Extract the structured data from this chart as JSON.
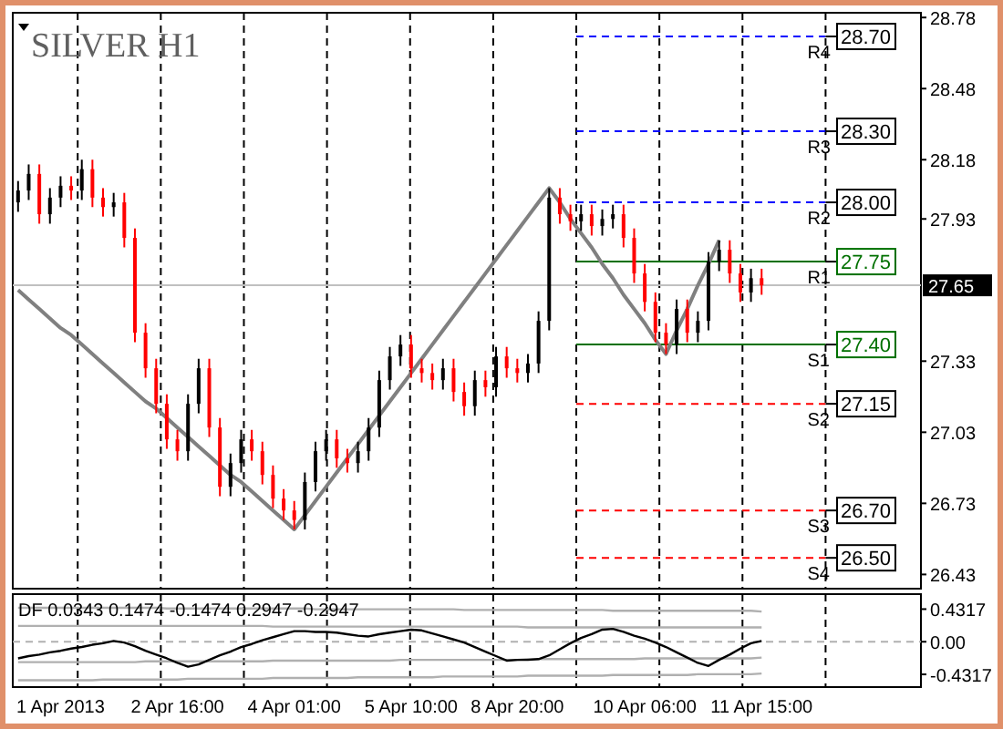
{
  "chart_data": [
    {
      "type": "candlestick",
      "title": "SILVER H1",
      "tick_labels": "y",
      "grid": "x",
      "ylim": [
        26.37,
        28.8
      ],
      "yticks": [
        28.78,
        28.48,
        28.18,
        27.93,
        27.33,
        27.03,
        26.73,
        26.43
      ],
      "categories": [
        null,
        null,
        null,
        null,
        null,
        null,
        null,
        null,
        null,
        null,
        null,
        null,
        null,
        null,
        null,
        null,
        null,
        null,
        null,
        null,
        null,
        null,
        null,
        null,
        null,
        null,
        null,
        null,
        null,
        null,
        null,
        null,
        null,
        null,
        null,
        null,
        null,
        null,
        null,
        null,
        null,
        null,
        null,
        null,
        null,
        null,
        null,
        null,
        null,
        null,
        null,
        null,
        null,
        null,
        null,
        null,
        null,
        null,
        null,
        null,
        null,
        null,
        null,
        null,
        null,
        null,
        null,
        null,
        null,
        null,
        null
      ],
      "ohlc": [
        [
          28.0,
          28.09,
          27.96,
          28.05
        ],
        [
          28.05,
          28.16,
          28.01,
          28.12
        ],
        [
          28.12,
          28.16,
          27.91,
          27.95
        ],
        [
          27.95,
          28.06,
          27.91,
          28.02
        ],
        [
          28.02,
          28.11,
          27.98,
          28.07
        ],
        [
          28.07,
          28.11,
          28.01,
          28.05
        ],
        [
          28.05,
          28.18,
          28.01,
          28.14
        ],
        [
          28.14,
          28.18,
          27.98,
          28.02
        ],
        [
          28.02,
          28.06,
          27.94,
          27.98
        ],
        [
          27.98,
          28.04,
          27.94,
          28.0
        ],
        [
          28.0,
          28.04,
          27.81,
          27.85
        ],
        [
          27.85,
          27.89,
          27.41,
          27.45
        ],
        [
          27.45,
          27.49,
          27.26,
          27.3
        ],
        [
          27.3,
          27.34,
          27.11,
          27.15
        ],
        [
          27.15,
          27.19,
          26.96,
          27.0
        ],
        [
          27.0,
          27.04,
          26.91,
          26.95
        ],
        [
          26.95,
          27.19,
          26.91,
          27.15
        ],
        [
          27.15,
          27.34,
          27.11,
          27.3
        ],
        [
          27.3,
          27.34,
          27.01,
          27.05
        ],
        [
          27.05,
          27.09,
          26.76,
          26.8
        ],
        [
          26.8,
          26.94,
          26.76,
          26.9
        ],
        [
          26.9,
          27.04,
          26.86,
          27.0
        ],
        [
          27.0,
          27.04,
          26.91,
          26.95
        ],
        [
          26.95,
          26.99,
          26.81,
          26.85
        ],
        [
          26.85,
          26.89,
          26.71,
          26.75
        ],
        [
          26.75,
          26.79,
          26.66,
          26.7
        ],
        [
          26.7,
          26.74,
          26.62,
          26.66
        ],
        [
          26.66,
          26.86,
          26.62,
          26.82
        ],
        [
          26.82,
          26.99,
          26.78,
          26.95
        ],
        [
          26.95,
          27.04,
          26.91,
          27.0
        ],
        [
          27.0,
          27.04,
          26.88,
          26.92
        ],
        [
          26.92,
          26.96,
          26.86,
          26.9
        ],
        [
          26.9,
          26.99,
          26.86,
          26.95
        ],
        [
          26.95,
          27.09,
          26.91,
          27.05
        ],
        [
          27.05,
          27.29,
          27.01,
          27.25
        ],
        [
          27.25,
          27.39,
          27.21,
          27.35
        ],
        [
          27.35,
          27.44,
          27.31,
          27.4
        ],
        [
          27.4,
          27.44,
          27.26,
          27.3
        ],
        [
          27.3,
          27.34,
          27.24,
          27.28
        ],
        [
          27.28,
          27.32,
          27.21,
          27.25
        ],
        [
          27.25,
          27.34,
          27.21,
          27.3
        ],
        [
          27.3,
          27.34,
          27.16,
          27.2
        ],
        [
          27.2,
          27.24,
          27.1,
          27.14
        ],
        [
          27.14,
          27.29,
          27.1,
          27.25
        ],
        [
          27.25,
          27.29,
          27.18,
          27.22
        ],
        [
          27.22,
          27.39,
          27.18,
          27.35
        ],
        [
          27.35,
          27.39,
          27.26,
          27.3
        ],
        [
          27.3,
          27.34,
          27.24,
          27.28
        ],
        [
          27.28,
          27.36,
          27.24,
          27.32
        ],
        [
          27.32,
          27.54,
          27.28,
          27.5
        ],
        [
          27.5,
          28.06,
          27.46,
          28.02
        ],
        [
          28.02,
          28.06,
          27.91,
          27.95
        ],
        [
          27.95,
          27.99,
          27.88,
          27.92
        ],
        [
          27.92,
          27.99,
          27.88,
          27.95
        ],
        [
          27.95,
          27.99,
          27.86,
          27.9
        ],
        [
          27.9,
          27.97,
          27.86,
          27.93
        ],
        [
          27.93,
          27.99,
          27.89,
          27.95
        ],
        [
          27.95,
          27.99,
          27.81,
          27.85
        ],
        [
          27.85,
          27.89,
          27.66,
          27.7
        ],
        [
          27.7,
          27.74,
          27.54,
          27.58
        ],
        [
          27.58,
          27.62,
          27.41,
          27.45
        ],
        [
          27.45,
          27.49,
          27.36,
          27.4
        ],
        [
          27.4,
          27.59,
          27.36,
          27.55
        ],
        [
          27.55,
          27.59,
          27.41,
          27.45
        ],
        [
          27.45,
          27.54,
          27.41,
          27.5
        ],
        [
          27.5,
          27.79,
          27.46,
          27.75
        ],
        [
          27.75,
          27.84,
          27.71,
          27.8
        ],
        [
          27.8,
          27.84,
          27.66,
          27.7
        ],
        [
          27.7,
          27.74,
          27.58,
          27.62
        ],
        [
          27.62,
          27.72,
          27.58,
          27.68
        ],
        [
          27.68,
          27.72,
          27.61,
          27.65
        ]
      ],
      "series": [
        {
          "type": "line",
          "color": "#808080",
          "values": [
            27.63,
            27.59,
            27.55,
            27.51,
            27.47,
            27.44,
            27.4,
            27.36,
            27.32,
            27.28,
            27.24,
            27.2,
            27.16,
            27.13,
            27.09,
            27.05,
            27.01,
            26.97,
            26.93,
            26.89,
            26.85,
            26.82,
            26.78,
            26.74,
            26.7,
            26.66,
            26.62,
            26.68,
            26.74,
            26.8,
            26.86,
            26.92,
            26.98,
            27.04,
            27.1,
            27.16,
            27.22,
            27.28,
            27.34,
            27.4,
            27.46,
            27.52,
            27.58,
            27.64,
            27.7,
            27.76,
            27.82,
            27.88,
            27.94,
            28.0,
            28.06,
            28.0,
            27.93,
            27.87,
            27.81,
            27.74,
            27.68,
            27.61,
            27.55,
            27.49,
            27.42,
            27.36,
            27.46,
            27.55,
            27.65,
            27.74,
            27.84,
            null,
            null,
            null,
            null
          ]
        }
      ],
      "ref_lines": [
        {
          "axis": "y",
          "value": 27.65,
          "label": "27.65",
          "color": "#c0c0c0",
          "line_style": "solid"
        },
        {
          "axis": "y",
          "value": 28.7,
          "label": "R4",
          "color": "#0000ff",
          "line_style": "dashed"
        },
        {
          "axis": "y",
          "value": 28.3,
          "label": "R3",
          "color": "#0000ff",
          "line_style": "dashed"
        },
        {
          "axis": "y",
          "value": 28.0,
          "label": "R2",
          "color": "#0000ff",
          "line_style": "dashed"
        },
        {
          "axis": "y",
          "value": 27.75,
          "label": "R1",
          "color": "#007000",
          "line_style": "solid"
        },
        {
          "axis": "y",
          "value": 27.4,
          "label": "S1",
          "color": "#007000",
          "line_style": "solid"
        },
        {
          "axis": "y",
          "value": 27.15,
          "label": "S2",
          "color": "#ff0000",
          "line_style": "dashed"
        },
        {
          "axis": "y",
          "value": 26.7,
          "label": "S3",
          "color": "#ff0000",
          "line_style": "dashed"
        },
        {
          "axis": "y",
          "value": 26.5,
          "label": "S4",
          "color": "#ff0000",
          "line_style": "dashed"
        }
      ],
      "annotations": [
        "28.70",
        "28.30",
        "28.00",
        "27.75",
        "27.40",
        "27.15",
        "26.70",
        "26.50"
      ]
    },
    {
      "type": "line",
      "title": "DF 0.0343 0.1474 -0.1474 0.2947 -0.2947",
      "grid": "x",
      "ylim": [
        -0.6,
        0.63
      ],
      "yticks": [
        0.4317,
        {
          "value": 0,
          "label": "0.00"
        },
        -0.4317
      ],
      "categories": [
        null,
        null,
        null,
        null,
        "1 Apr 2013",
        null,
        null,
        null,
        null,
        null,
        null,
        null,
        null,
        null,
        null,
        "2 Apr 16:00",
        null,
        null,
        null,
        null,
        null,
        null,
        null,
        null,
        null,
        null,
        "4 Apr 01:00",
        null,
        null,
        null,
        null,
        null,
        null,
        null,
        null,
        null,
        null,
        "5 Apr 10:00",
        null,
        null,
        null,
        null,
        null,
        null,
        null,
        null,
        null,
        "8 Apr 20:00",
        null,
        null,
        null,
        null,
        null,
        null,
        null,
        null,
        null,
        null,
        null,
        "10 Apr 06:00",
        null,
        null,
        null,
        null,
        null,
        null,
        null,
        null,
        null,
        null,
        "11 Apr 15:00"
      ],
      "series": [
        {
          "color": "#b0b0b0",
          "values": [
            0.45,
            0.45,
            0.45,
            0.45,
            0.45,
            0.45,
            0.45,
            0.45,
            0.45,
            0.45,
            0.45,
            0.45,
            0.45,
            0.45,
            0.44,
            0.44,
            0.44,
            0.44,
            0.44,
            0.44,
            0.44,
            0.44,
            0.44,
            0.44,
            0.44,
            0.44,
            0.44,
            0.44,
            0.43,
            0.43,
            0.43,
            0.43,
            0.43,
            0.43,
            0.43,
            0.43,
            0.43,
            0.43,
            0.43,
            0.43,
            0.43,
            0.43,
            0.42,
            0.42,
            0.42,
            0.42,
            0.42,
            0.42,
            0.42,
            0.42,
            0.42,
            0.42,
            0.42,
            0.42,
            0.42,
            0.42,
            0.41,
            0.41,
            0.41,
            0.41,
            0.41,
            0.41,
            0.41,
            0.41,
            0.41,
            0.41,
            0.41,
            0.41,
            0.41,
            0.41,
            0.4
          ]
        },
        {
          "color": "#b0b0b0",
          "values": [
            0.21,
            0.21,
            0.21,
            0.21,
            0.21,
            0.21,
            0.21,
            0.21,
            0.21,
            0.21,
            0.21,
            0.21,
            0.21,
            0.21,
            0.21,
            0.21,
            0.21,
            0.21,
            0.21,
            0.21,
            0.21,
            0.21,
            0.21,
            0.21,
            0.2,
            0.2,
            0.2,
            0.2,
            0.2,
            0.2,
            0.2,
            0.2,
            0.2,
            0.2,
            0.2,
            0.2,
            0.2,
            0.2,
            0.2,
            0.2,
            0.2,
            0.2,
            0.2,
            0.2,
            0.2,
            0.2,
            0.2,
            0.2,
            0.19,
            0.19,
            0.19,
            0.19,
            0.19,
            0.19,
            0.19,
            0.19,
            0.19,
            0.19,
            0.19,
            0.19,
            0.19,
            0.19,
            0.19,
            0.19,
            0.19,
            0.19,
            0.19,
            0.19,
            0.19,
            0.19,
            0.19
          ]
        },
        {
          "color": "#b0b0b0",
          "values": [
            -0.27,
            -0.27,
            -0.27,
            -0.27,
            -0.27,
            -0.27,
            -0.27,
            -0.27,
            -0.27,
            -0.27,
            -0.27,
            -0.27,
            -0.26,
            -0.26,
            -0.26,
            -0.26,
            -0.26,
            -0.26,
            -0.26,
            -0.26,
            -0.26,
            -0.26,
            -0.26,
            -0.26,
            -0.25,
            -0.25,
            -0.25,
            -0.25,
            -0.25,
            -0.25,
            -0.25,
            -0.25,
            -0.25,
            -0.25,
            -0.25,
            -0.25,
            -0.24,
            -0.24,
            -0.24,
            -0.24,
            -0.24,
            -0.24,
            -0.24,
            -0.24,
            -0.24,
            -0.24,
            -0.24,
            -0.24,
            -0.23,
            -0.23,
            -0.23,
            -0.23,
            -0.23,
            -0.23,
            -0.23,
            -0.23,
            -0.23,
            -0.23,
            -0.23,
            -0.22,
            -0.22,
            -0.22,
            -0.22,
            -0.22,
            -0.22,
            -0.22,
            -0.22,
            -0.22,
            -0.22,
            -0.22,
            -0.21
          ]
        },
        {
          "color": "#b0b0b0",
          "values": [
            -0.51,
            -0.51,
            -0.51,
            -0.51,
            -0.51,
            -0.51,
            -0.51,
            -0.51,
            -0.5,
            -0.5,
            -0.5,
            -0.5,
            -0.5,
            -0.5,
            -0.5,
            -0.5,
            -0.49,
            -0.49,
            -0.49,
            -0.49,
            -0.49,
            -0.49,
            -0.49,
            -0.49,
            -0.48,
            -0.48,
            -0.48,
            -0.48,
            -0.48,
            -0.48,
            -0.48,
            -0.48,
            -0.47,
            -0.47,
            -0.47,
            -0.47,
            -0.47,
            -0.47,
            -0.47,
            -0.47,
            -0.46,
            -0.46,
            -0.46,
            -0.46,
            -0.46,
            -0.46,
            -0.46,
            -0.46,
            -0.45,
            -0.45,
            -0.45,
            -0.45,
            -0.45,
            -0.45,
            -0.45,
            -0.45,
            -0.44,
            -0.44,
            -0.44,
            -0.44,
            -0.44,
            -0.44,
            -0.44,
            -0.44,
            -0.43,
            -0.43,
            -0.43,
            -0.43,
            -0.43,
            -0.43,
            -0.42
          ]
        },
        {
          "color": "#000000",
          "values": [
            -0.22,
            -0.19,
            -0.17,
            -0.14,
            -0.12,
            -0.09,
            -0.07,
            -0.04,
            -0.02,
            0.01,
            -0.01,
            -0.06,
            -0.12,
            -0.17,
            -0.22,
            -0.28,
            -0.33,
            -0.3,
            -0.24,
            -0.18,
            -0.13,
            -0.07,
            -0.03,
            0.02,
            0.06,
            0.1,
            0.14,
            0.14,
            0.13,
            0.13,
            0.12,
            0.1,
            0.08,
            0.07,
            0.1,
            0.12,
            0.14,
            0.16,
            0.15,
            0.11,
            0.07,
            0.03,
            -0.01,
            -0.07,
            -0.13,
            -0.19,
            -0.25,
            -0.24,
            -0.24,
            -0.23,
            -0.18,
            -0.1,
            -0.02,
            0.05,
            0.1,
            0.16,
            0.17,
            0.13,
            0.08,
            0.04,
            -0.01,
            -0.07,
            -0.14,
            -0.21,
            -0.28,
            -0.32,
            -0.24,
            -0.17,
            -0.09,
            -0.02,
            0.01
          ]
        }
      ],
      "ref_lines": [
        {
          "axis": "y",
          "value": 0,
          "color": "#b0b0b0",
          "line_style": "dashed"
        }
      ]
    }
  ]
}
